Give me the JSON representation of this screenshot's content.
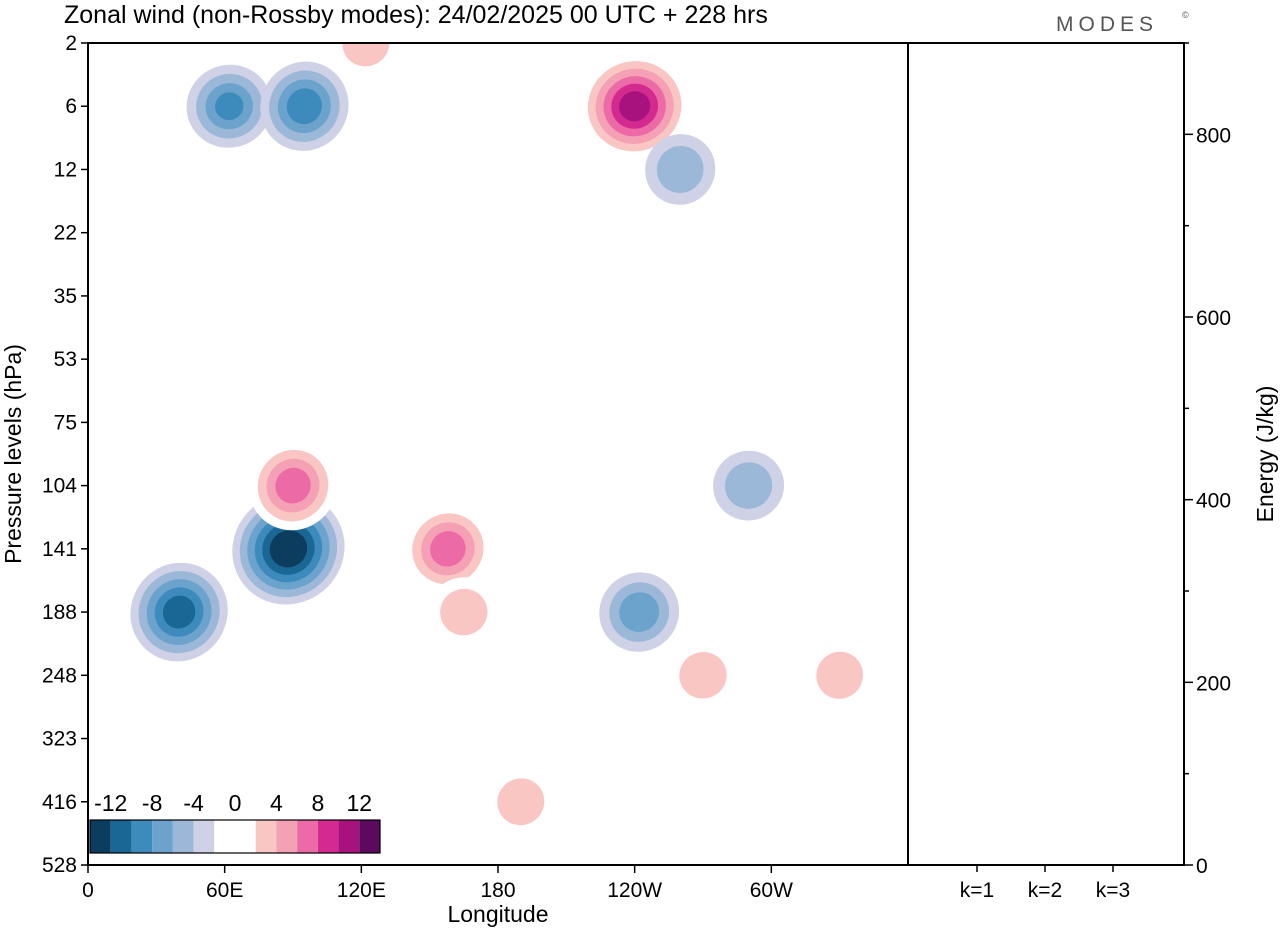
{
  "header": {
    "title": "Zonal wind (non-Rossby modes):  24/02/2025  00 UTC  + 228 hrs",
    "brand": "MODES",
    "brand_mark": "©"
  },
  "chart_data": [
    {
      "type": "heatmap",
      "title": "Zonal wind (non-Rossby modes):  24/02/2025  00 UTC  + 228 hrs",
      "xlabel": "Longitude",
      "ylabel": "Pressure levels (hPa)",
      "x_ticks": [
        "0",
        "60E",
        "120E",
        "180",
        "120W",
        "60W"
      ],
      "x_tick_degrees": [
        0,
        60,
        120,
        180,
        240,
        300
      ],
      "xlim": [
        0,
        360
      ],
      "y_ticks": [
        "2",
        "6",
        "12",
        "22",
        "35",
        "53",
        "75",
        "104",
        "141",
        "188",
        "248",
        "323",
        "416",
        "528"
      ],
      "y_scale": "pressure levels, top to bottom",
      "colorbar": {
        "labels": [
          "-12",
          "-8",
          "-4",
          "0",
          "4",
          "8",
          "12"
        ],
        "levels": [
          -14,
          -12,
          -10,
          -8,
          -6,
          -4,
          -2,
          2,
          4,
          6,
          8,
          10,
          12,
          14
        ],
        "colors": [
          "#0d3d5e",
          "#1a6694",
          "#3d8abd",
          "#6ba3cc",
          "#9cb8d8",
          "#cfd2e6",
          "#ffffff",
          "#ffffff",
          "#f9c6c4",
          "#f4a0b5",
          "#ec6aa6",
          "#d42a90",
          "#a8127f",
          "#5c0a5e"
        ],
        "placement": "bottom-left"
      },
      "features": [
        {
          "lon": 88,
          "level": 141,
          "value": -13
        },
        {
          "lon": 62,
          "level": 6,
          "value": -7
        },
        {
          "lon": 95,
          "level": 6,
          "value": -8
        },
        {
          "lon": 122,
          "level": 2,
          "value": 4
        },
        {
          "lon": 240,
          "level": 6,
          "value": 12
        },
        {
          "lon": 90,
          "level": 104,
          "value": 8
        },
        {
          "lon": 158,
          "level": 141,
          "value": 8
        },
        {
          "lon": 165,
          "level": 188,
          "value": 4
        },
        {
          "lon": 40,
          "level": 188,
          "value": -10
        },
        {
          "lon": 242,
          "level": 188,
          "value": -6
        },
        {
          "lon": 270,
          "level": 248,
          "value": 4
        },
        {
          "lon": 330,
          "level": 248,
          "value": 4
        },
        {
          "lon": 190,
          "level": 416,
          "value": 4
        },
        {
          "lon": 290,
          "level": 104,
          "value": -4
        },
        {
          "lon": 260,
          "level": 12,
          "value": -4
        }
      ]
    },
    {
      "type": "bar",
      "categories": [
        "k=1",
        "k=2",
        "k=3"
      ],
      "values": [
        1,
        1,
        1
      ],
      "ylabel": "Energy (J/kg)",
      "ylim": [
        0,
        900
      ],
      "y_ticks": [
        0,
        200,
        400,
        600,
        800
      ]
    }
  ]
}
